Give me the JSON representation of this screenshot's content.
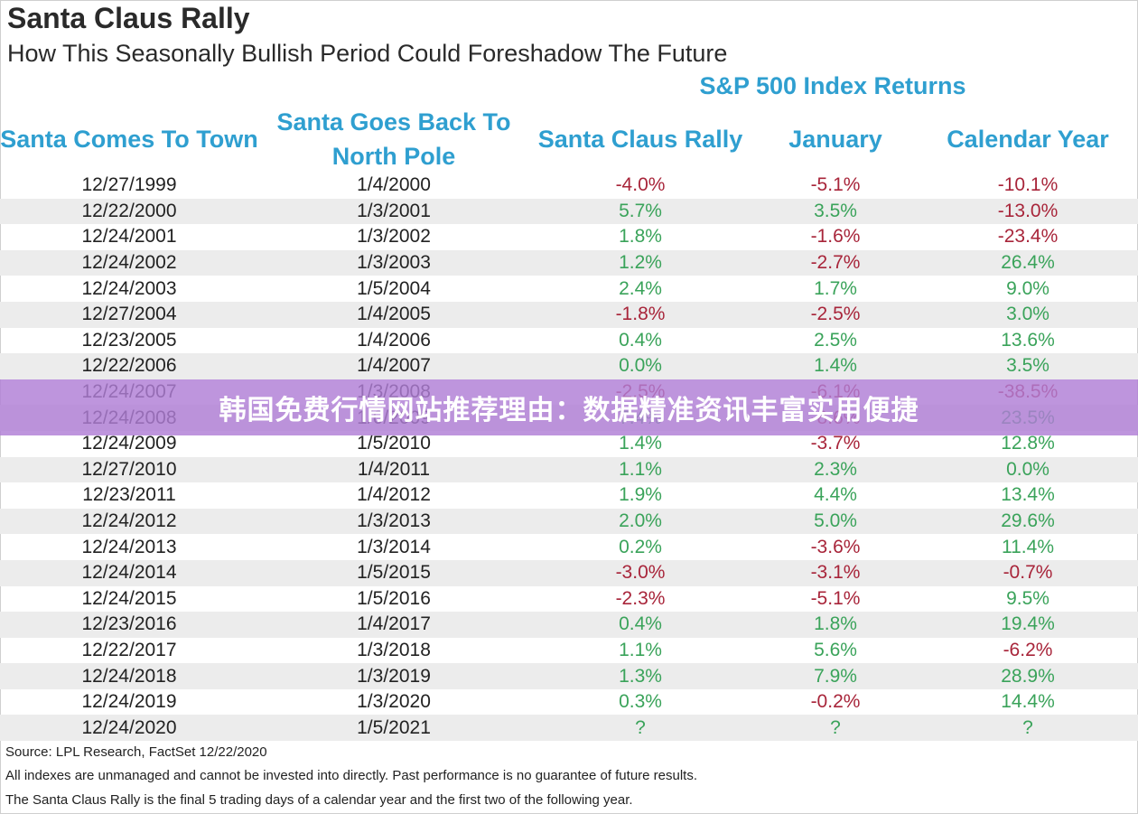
{
  "chart_data": {
    "type": "table",
    "title": "Santa Claus Rally",
    "subtitle": "How This Seasonally Bullish Period Could Foreshadow The Future",
    "group_header": "S&P 500 Index Returns",
    "columns": [
      "Santa Comes To Town",
      "Santa Goes Back To North Pole",
      "Santa Claus Rally",
      "January",
      "Calendar Year"
    ],
    "rows": [
      [
        "12/27/1999",
        "1/4/2000",
        "-4.0%",
        "-5.1%",
        "-10.1%"
      ],
      [
        "12/22/2000",
        "1/3/2001",
        "5.7%",
        "3.5%",
        "-13.0%"
      ],
      [
        "12/24/2001",
        "1/3/2002",
        "1.8%",
        "-1.6%",
        "-23.4%"
      ],
      [
        "12/24/2002",
        "1/3/2003",
        "1.2%",
        "-2.7%",
        "26.4%"
      ],
      [
        "12/24/2003",
        "1/5/2004",
        "2.4%",
        "1.7%",
        "9.0%"
      ],
      [
        "12/27/2004",
        "1/4/2005",
        "-1.8%",
        "-2.5%",
        "3.0%"
      ],
      [
        "12/23/2005",
        "1/4/2006",
        "0.4%",
        "2.5%",
        "13.6%"
      ],
      [
        "12/22/2006",
        "1/4/2007",
        "0.0%",
        "1.4%",
        "3.5%"
      ],
      [
        "12/24/2007",
        "1/3/2008",
        "-2.5%",
        "-6.1%",
        "-38.5%"
      ],
      [
        "12/24/2008",
        "1/6/2009",
        "7.4%",
        "-8.6%",
        "23.5%"
      ],
      [
        "12/24/2009",
        "1/5/2010",
        "1.4%",
        "-3.7%",
        "12.8%"
      ],
      [
        "12/27/2010",
        "1/4/2011",
        "1.1%",
        "2.3%",
        "0.0%"
      ],
      [
        "12/23/2011",
        "1/4/2012",
        "1.9%",
        "4.4%",
        "13.4%"
      ],
      [
        "12/24/2012",
        "1/3/2013",
        "2.0%",
        "5.0%",
        "29.6%"
      ],
      [
        "12/24/2013",
        "1/3/2014",
        "0.2%",
        "-3.6%",
        "11.4%"
      ],
      [
        "12/24/2014",
        "1/5/2015",
        "-3.0%",
        "-3.1%",
        "-0.7%"
      ],
      [
        "12/24/2015",
        "1/5/2016",
        "-2.3%",
        "-5.1%",
        "9.5%"
      ],
      [
        "12/23/2016",
        "1/4/2017",
        "0.4%",
        "1.8%",
        "19.4%"
      ],
      [
        "12/22/2017",
        "1/3/2018",
        "1.1%",
        "5.6%",
        "-6.2%"
      ],
      [
        "12/24/2018",
        "1/3/2019",
        "1.3%",
        "7.9%",
        "28.9%"
      ],
      [
        "12/24/2019",
        "1/3/2020",
        "0.3%",
        "-0.2%",
        "14.4%"
      ],
      [
        "12/24/2020",
        "1/5/2021",
        "?",
        "?",
        "?"
      ]
    ]
  },
  "footnotes": {
    "source": "Source: LPL Research, FactSet 12/22/2020",
    "disclaimer": "All indexes are unmanaged and cannot be invested into directly. Past performance is no guarantee of future results.",
    "definition": "The Santa Claus Rally is the final 5 trading days of a calendar year and the first two of the following year."
  },
  "overlay_banner": "韩国免费行情网站推荐理由：数据精准资讯丰富实用便捷",
  "colors": {
    "header_blue": "#2f9fd0",
    "positive_green": "#3aa35a",
    "negative_red": "#a8253a",
    "stripe_gray": "#ececec",
    "banner_purple": "#b07ed6"
  }
}
